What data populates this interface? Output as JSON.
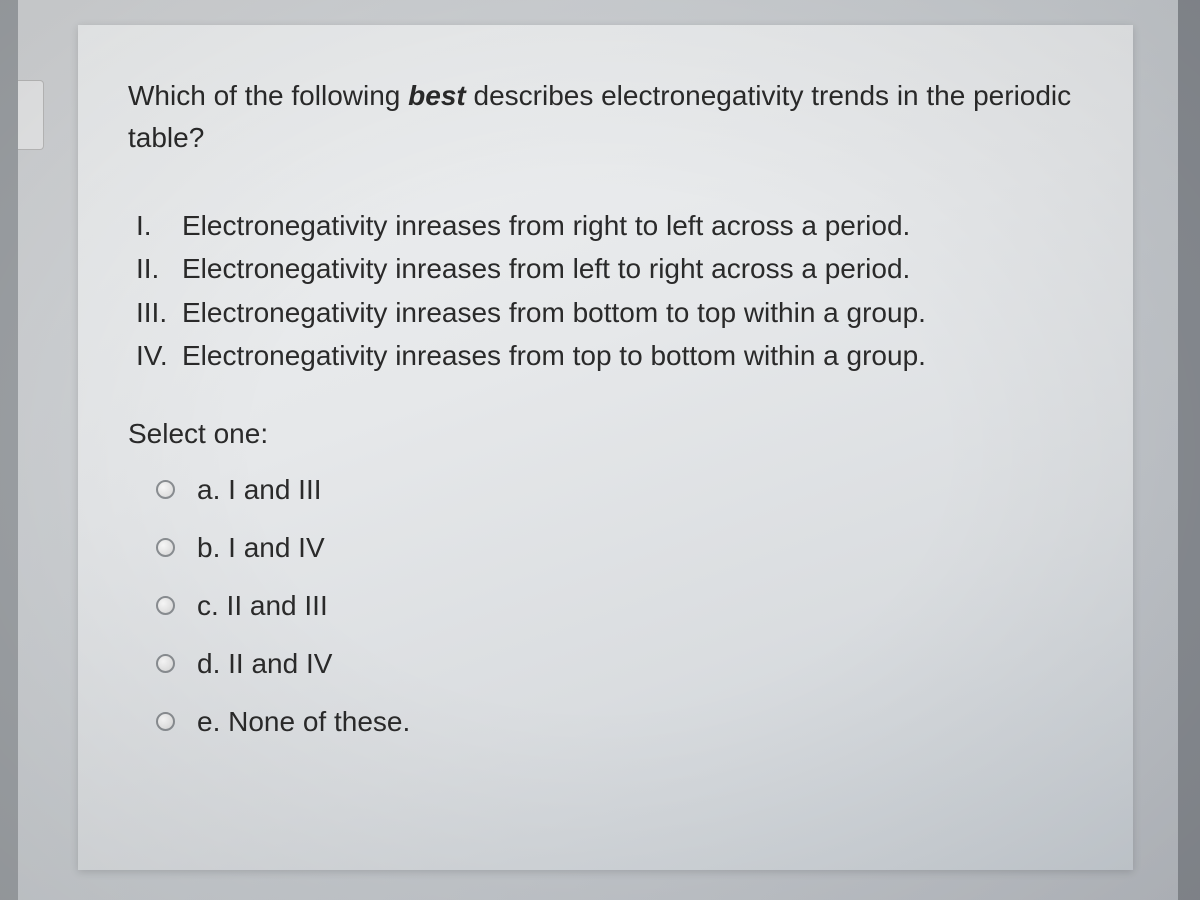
{
  "question": {
    "prefix": "Which of the following ",
    "emphasis": "best",
    "suffix": " describes electronegativity trends in the periodic table?"
  },
  "statements": [
    {
      "roman": "I.",
      "text": "Electronegativity inreases from right to left across a period."
    },
    {
      "roman": "II.",
      "text": "Electronegativity inreases from left to right across a period."
    },
    {
      "roman": "III.",
      "text": "Electronegativity inreases from bottom to top within a group."
    },
    {
      "roman": "IV.",
      "text": "Electronegativity inreases from top to bottom within a group."
    }
  ],
  "selectLabel": "Select one:",
  "options": [
    {
      "key": "a",
      "label": "a. I and III"
    },
    {
      "key": "b",
      "label": "b. I and IV"
    },
    {
      "key": "c",
      "label": "c. II and III"
    },
    {
      "key": "d",
      "label": "d. II and IV"
    },
    {
      "key": "e",
      "label": "e. None of these."
    }
  ],
  "colors": {
    "card_bg_start": "#eef0f1",
    "card_bg_end": "#c8ced4",
    "text": "#2a2a2a",
    "radio_border": "#8a8e92",
    "page_bg": "#c8ccd0"
  },
  "typography": {
    "font_family": "Arial",
    "question_fontsize": 28,
    "statement_fontsize": 28,
    "option_fontsize": 28
  }
}
